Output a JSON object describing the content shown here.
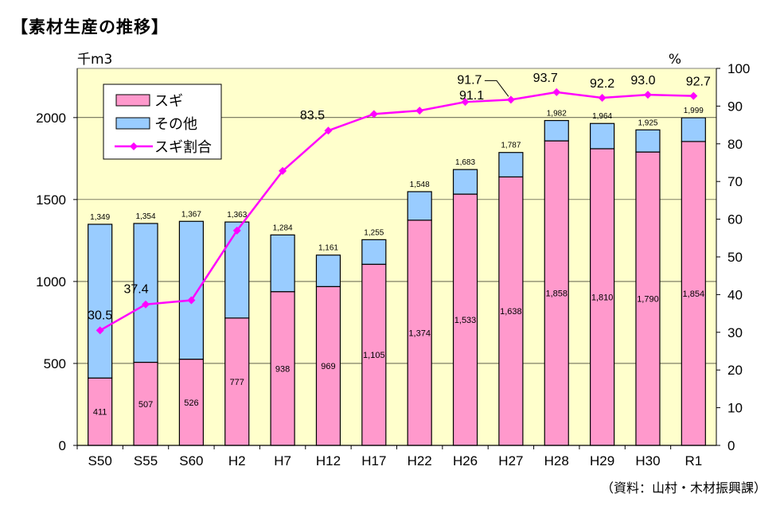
{
  "page": {
    "title": "【素材生産の推移】",
    "source": "（資料：山村・木材振興課）"
  },
  "chart_data": {
    "type": "bar",
    "stacked": true,
    "left_axis_unit": "千m3",
    "right_axis_unit": "%",
    "categories": [
      "S50",
      "S55",
      "S60",
      "H2",
      "H7",
      "H12",
      "H17",
      "H22",
      "H26",
      "H27",
      "H28",
      "H29",
      "H30",
      "R1"
    ],
    "series": [
      {
        "name": "スギ",
        "type": "bar",
        "color": "#ff99cc",
        "values": [
          411,
          507,
          526,
          777,
          938,
          969,
          1105,
          1374,
          1533,
          1638,
          1858,
          1810,
          1790,
          1854
        ]
      },
      {
        "name": "その他",
        "type": "bar",
        "color": "#99ccff",
        "values": [
          938,
          847,
          841,
          586,
          346,
          192,
          150,
          174,
          150,
          149,
          124,
          154,
          135,
          145
        ]
      },
      {
        "name": "スギ割合",
        "type": "line",
        "axis": "right",
        "color": "#ff00ff",
        "values": [
          30.5,
          37.4,
          38.5,
          57.0,
          72.8,
          83.5,
          87.9,
          88.8,
          91.1,
          91.7,
          93.7,
          92.2,
          93.0,
          92.7
        ]
      }
    ],
    "totals": [
      1349,
      1354,
      1367,
      1363,
      1284,
      1161,
      1255,
      1548,
      1683,
      1787,
      1982,
      1964,
      1925,
      1999
    ],
    "total_labels": [
      "1,349",
      "1,354",
      "1,367",
      "1,363",
      "1,284",
      "1,161",
      "1,255",
      "1,548",
      "1,683",
      "1,787",
      "1,982",
      "1,964",
      "1,925",
      "1,999"
    ],
    "sugi_labels": [
      "411",
      "507",
      "526",
      "777",
      "938",
      "969",
      "1,105",
      "1,374",
      "1,533",
      "1,638",
      "1,858",
      "1,810",
      "1,790",
      "1,854"
    ],
    "pct_labels": [
      {
        "i": 0,
        "text": "30.5"
      },
      {
        "i": 1,
        "text": "37.4"
      },
      {
        "i": 5,
        "text": "83.5"
      },
      {
        "i": 8,
        "text": "91.1"
      },
      {
        "i": 9,
        "text": "91.7"
      },
      {
        "i": 10,
        "text": "93.7"
      },
      {
        "i": 11,
        "text": "92.2"
      },
      {
        "i": 12,
        "text": "93.0"
      },
      {
        "i": 13,
        "text": "92.7"
      }
    ],
    "ylim": [
      0,
      2300
    ],
    "yticks": [
      0,
      500,
      1000,
      1500,
      2000
    ],
    "y2lim": [
      0,
      100
    ],
    "y2ticks": [
      0,
      10,
      20,
      30,
      40,
      50,
      60,
      70,
      80,
      90,
      100
    ],
    "legend_position": "top-left",
    "plot_background": "#ffffcc"
  }
}
